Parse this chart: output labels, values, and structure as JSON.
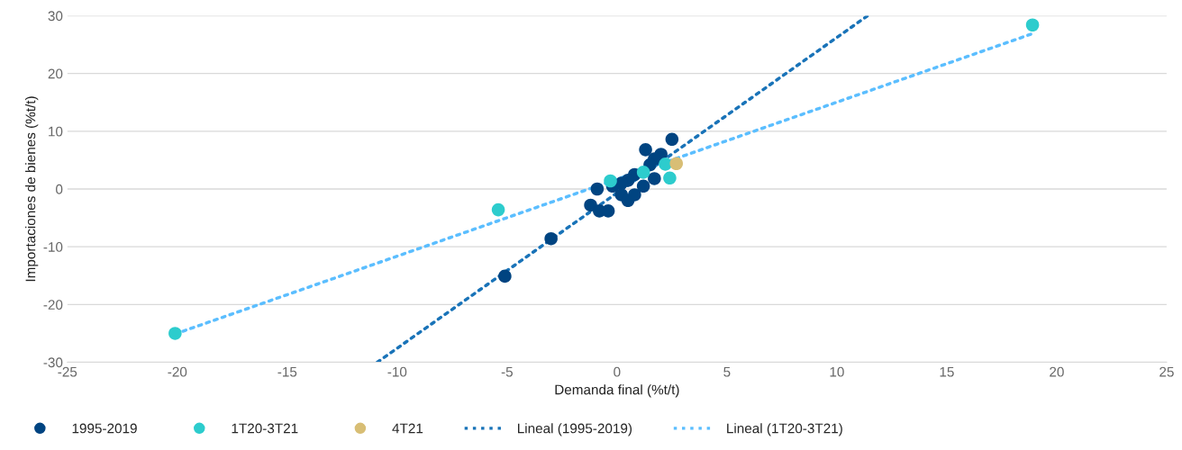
{
  "chart_data": {
    "type": "scatter",
    "xlabel": "Demanda final (%t/t)",
    "ylabel": "Importaciones de bienes (%t/t)",
    "xlim": [
      -25,
      25
    ],
    "xticks": [
      -25,
      -20,
      -15,
      -10,
      -5,
      0,
      5,
      10,
      15,
      20,
      25
    ],
    "ylim": [
      -30,
      30
    ],
    "yticks": [
      -30,
      -20,
      -10,
      0,
      10,
      20,
      30
    ],
    "grid": "y",
    "legend": "bottom",
    "marker": "circle",
    "series": [
      {
        "name": "1995-2019",
        "color": "#004481",
        "x": [
          -5.1,
          -3.0,
          -1.2,
          -0.8,
          -0.4,
          -0.9,
          2.5,
          1.3,
          2.0,
          1.7,
          1.5,
          0.8,
          0.5,
          0.2,
          0.5,
          0.8,
          1.2,
          0.2,
          -0.2,
          1.7
        ],
        "values": [
          -15.1,
          -8.6,
          -2.8,
          -3.8,
          -3.8,
          0.0,
          8.6,
          6.8,
          6.0,
          5.2,
          4.2,
          2.5,
          1.5,
          -1.0,
          -2.0,
          -1.0,
          0.5,
          1.0,
          0.5,
          1.8
        ]
      },
      {
        "name": "1T20-3T21",
        "color": "#2dcccd",
        "x": [
          -20.1,
          -5.4,
          -0.3,
          1.2,
          2.2,
          2.4,
          18.9
        ],
        "values": [
          -25.0,
          -3.6,
          1.4,
          2.9,
          4.3,
          1.9,
          28.4
        ]
      },
      {
        "name": "4T21",
        "color": "#d8be75",
        "x": [
          2.7
        ],
        "values": [
          4.4
        ]
      },
      {
        "name": "Lineal (1995-2019)",
        "color": "#1973b8",
        "type": "line",
        "line_style": "dotted",
        "marker": "none",
        "x": [
          -10.9,
          11.4
        ],
        "values": [
          -30,
          30
        ]
      },
      {
        "name": "Lineal (1T20-3T21)",
        "color": "#5bbeff",
        "type": "line",
        "line_style": "dotted",
        "marker": "none",
        "x": [
          -20.1,
          18.9
        ],
        "values": [
          -25.1,
          26.9
        ]
      }
    ]
  }
}
